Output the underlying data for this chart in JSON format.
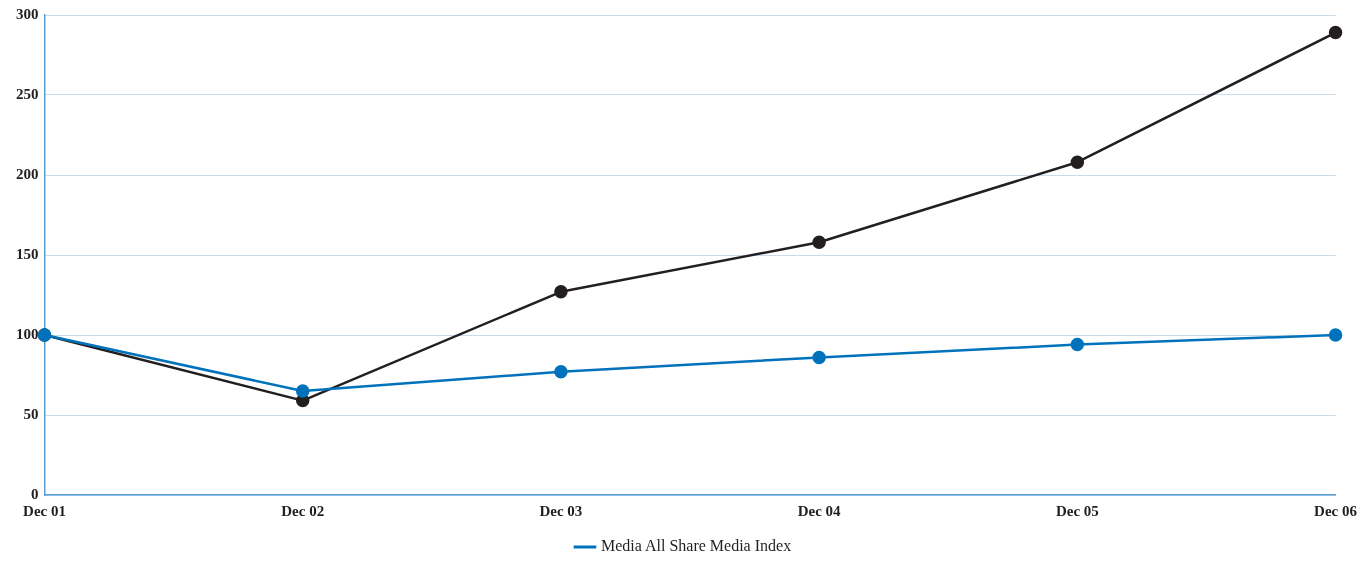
{
  "chart_data": {
    "type": "line",
    "categories": [
      "Dec 01",
      "Dec 02",
      "Dec 03",
      "Dec 04",
      "Dec 05",
      "Dec 06"
    ],
    "series": [
      {
        "color": "#231f20",
        "values": [
          100,
          59,
          127,
          158,
          208,
          289
        ]
      },
      {
        "name": "Media All Share Media Index",
        "color": "#0072bc",
        "values": [
          100,
          65,
          77,
          86,
          94,
          100
        ]
      }
    ],
    "ylim": [
      0,
      300
    ],
    "yticks": [
      0,
      50,
      100,
      150,
      200,
      250,
      300
    ],
    "grid": "y",
    "legend": "bottom",
    "marker": "circle",
    "line_style": "solid"
  }
}
